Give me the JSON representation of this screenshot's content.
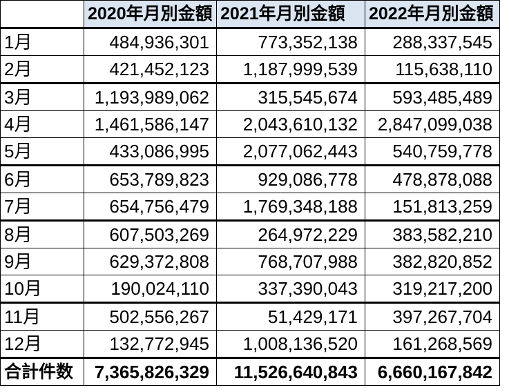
{
  "table": {
    "corner_label": "",
    "columns": [
      "2020年月別金額",
      "2021年月別金額",
      "2022年月別金額"
    ],
    "rows": [
      {
        "label": "1月",
        "values": [
          "484,936,301",
          "773,352,138",
          "288,337,545"
        ],
        "thick_bottom": false
      },
      {
        "label": "2月",
        "values": [
          "421,452,123",
          "1,187,999,539",
          "115,638,110"
        ],
        "thick_bottom": true
      },
      {
        "label": "3月",
        "values": [
          "1,193,989,062",
          "315,545,674",
          "593,485,489"
        ],
        "thick_bottom": false
      },
      {
        "label": "4月",
        "values": [
          "1,461,586,147",
          "2,043,610,132",
          "2,847,099,038"
        ],
        "thick_bottom": false
      },
      {
        "label": "5月",
        "values": [
          "433,086,995",
          "2,077,062,443",
          "540,759,778"
        ],
        "thick_bottom": true
      },
      {
        "label": "6月",
        "values": [
          "653,789,823",
          "929,086,778",
          "478,878,088"
        ],
        "thick_bottom": false
      },
      {
        "label": "7月",
        "values": [
          "654,756,479",
          "1,769,348,188",
          "151,813,259"
        ],
        "thick_bottom": true
      },
      {
        "label": "8月",
        "values": [
          "607,503,269",
          "264,972,229",
          "383,582,210"
        ],
        "thick_bottom": false
      },
      {
        "label": "9月",
        "values": [
          "629,372,808",
          "768,707,988",
          "382,820,852"
        ],
        "thick_bottom": false
      },
      {
        "label": "10月",
        "values": [
          "190,024,110",
          "337,390,043",
          "319,217,200"
        ],
        "thick_bottom": true
      },
      {
        "label": "11月",
        "values": [
          "502,556,267",
          "51,429,171",
          "397,267,704"
        ],
        "thick_bottom": false
      },
      {
        "label": "12月",
        "values": [
          "132,772,945",
          "1,008,136,520",
          "161,268,569"
        ],
        "thick_bottom": true
      }
    ],
    "total": {
      "label": "合計件数",
      "values": [
        "7,365,826,329",
        "11,526,640,843",
        "6,660,167,842"
      ]
    }
  },
  "colors": {
    "header_bg": "#dbe5f1",
    "border": "#000000",
    "text": "#000000"
  },
  "chart_data": {
    "type": "table",
    "title": "",
    "categories": [
      "1月",
      "2月",
      "3月",
      "4月",
      "5月",
      "6月",
      "7月",
      "8月",
      "9月",
      "10月",
      "11月",
      "12月"
    ],
    "series": [
      {
        "name": "2020年月別金額",
        "values": [
          484936301,
          421452123,
          1193989062,
          1461586147,
          433086995,
          653789823,
          654756479,
          607503269,
          629372808,
          190024110,
          502556267,
          132772945
        ],
        "total": 7365826329
      },
      {
        "name": "2021年月別金額",
        "values": [
          773352138,
          1187999539,
          315545674,
          2043610132,
          2077062443,
          929086778,
          1769348188,
          264972229,
          768707988,
          337390043,
          51429171,
          1008136520
        ],
        "total": 11526640843
      },
      {
        "name": "2022年月別金額",
        "values": [
          288337545,
          115638110,
          593485489,
          2847099038,
          540759778,
          478878088,
          151813259,
          383582210,
          382820852,
          319217200,
          397267704,
          161268569
        ],
        "total": 6660167842
      }
    ],
    "total_label": "合計件数"
  }
}
